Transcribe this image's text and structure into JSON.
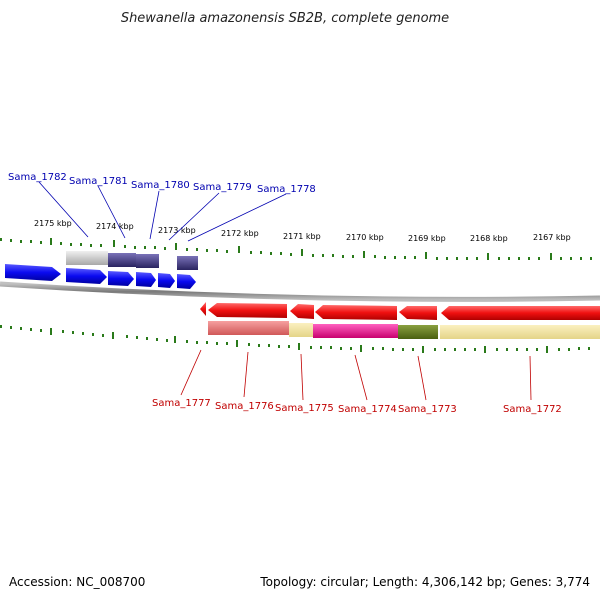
{
  "title": "Shewanella amazonensis SB2B, complete genome",
  "footer": {
    "accession": "Accession: NC_008700",
    "topology": "Topology: circular; Length: 4,306,142 bp; Genes: 3,774"
  },
  "ticks": [
    "2175 kbp",
    "2174 kbp",
    "2173 kbp",
    "2172 kbp",
    "2171 kbp",
    "2170 kbp",
    "2169 kbp",
    "2168 kbp",
    "2167 kbp"
  ],
  "top_labels": [
    "Sama_1782",
    "Sama_1781",
    "Sama_1780",
    "Sama_1779",
    "Sama_1778"
  ],
  "bottom_labels": [
    "Sama_1777",
    "Sama_1776",
    "Sama_1775",
    "Sama_1774",
    "Sama_1773",
    "Sama_1772"
  ],
  "colors": {
    "forward_strand": "#1010e0",
    "reverse_strand": "#e81010",
    "forward_label": "#0000b0",
    "reverse_label": "#c00000",
    "tick": "#2a7a1a",
    "backbone": "#888888"
  }
}
